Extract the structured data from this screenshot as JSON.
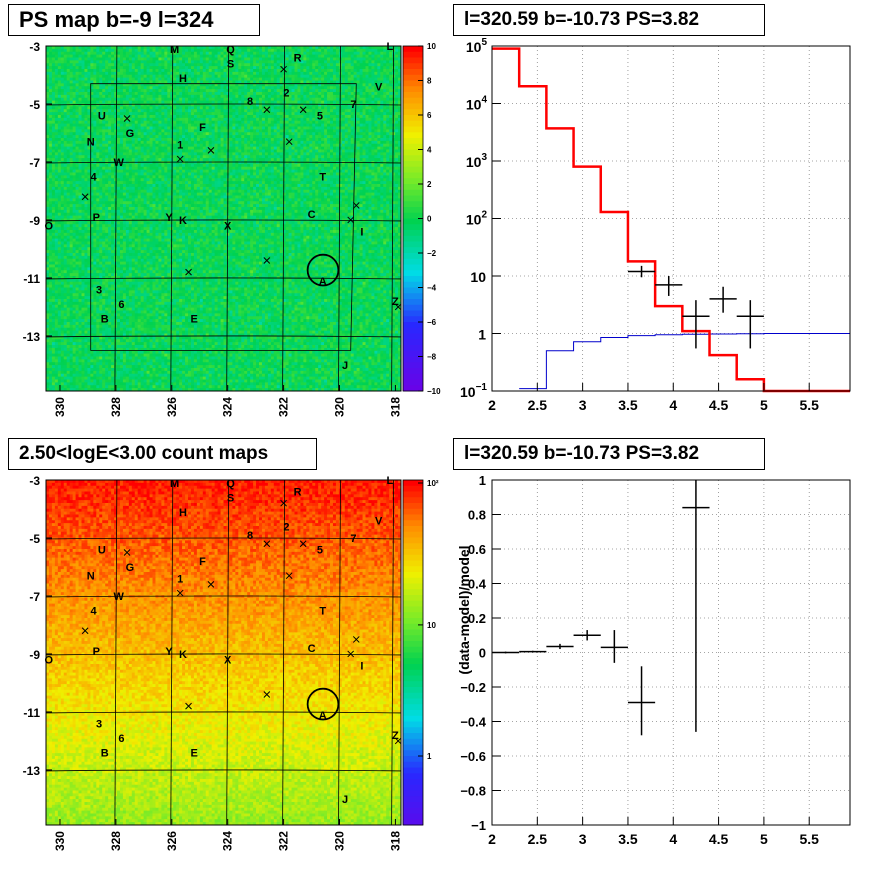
{
  "panel_titles": {
    "top_left": "PS map b=-9 l=324",
    "top_right": "l=320.59 b=-10.73 PS=3.82",
    "bottom_left": "2.50<logE<3.00 count maps",
    "bottom_right": "l=320.59 b=-10.73 PS=3.82"
  },
  "chart_data": [
    {
      "type": "heatmap",
      "name": "ps-map",
      "xlim": [
        330.5,
        317.8
      ],
      "ylim": [
        -14.9,
        -3
      ],
      "x_ticks": [
        "330",
        "328",
        "326",
        "324",
        "322",
        "320",
        "318"
      ],
      "y_ticks": [
        "-3",
        "-5",
        "-7",
        "-9",
        "-11",
        "-13"
      ],
      "colorbar": {
        "scale": "linear",
        "range": [
          -10,
          10
        ],
        "ticks": [
          "10",
          "8",
          "6",
          "4",
          "2",
          "0",
          "−2",
          "−4",
          "−6",
          "−8",
          "−10"
        ]
      },
      "source_labels": [
        {
          "t": "M",
          "l": 325.9,
          "b": -3.1
        },
        {
          "t": "Q",
          "l": 323.9,
          "b": -3.1
        },
        {
          "t": "S",
          "l": 323.9,
          "b": -3.6
        },
        {
          "t": "R",
          "l": 321.5,
          "b": -3.4
        },
        {
          "t": "L",
          "l": 318.2,
          "b": -3.0
        },
        {
          "t": "H",
          "l": 325.6,
          "b": -4.1
        },
        {
          "t": "V",
          "l": 318.6,
          "b": -4.4
        },
        {
          "t": "2",
          "l": 321.9,
          "b": -4.6
        },
        {
          "t": "8",
          "l": 323.2,
          "b": -4.9
        },
        {
          "t": "7",
          "l": 319.5,
          "b": -5.0
        },
        {
          "t": "U",
          "l": 328.5,
          "b": -5.4
        },
        {
          "t": "5",
          "l": 320.7,
          "b": -5.4
        },
        {
          "t": "F",
          "l": 324.9,
          "b": -5.8
        },
        {
          "t": "G",
          "l": 327.5,
          "b": -6.0
        },
        {
          "t": "N",
          "l": 328.9,
          "b": -6.3
        },
        {
          "t": "1",
          "l": 325.7,
          "b": -6.4
        },
        {
          "t": "W",
          "l": 327.9,
          "b": -7.0
        },
        {
          "t": "4",
          "l": 328.8,
          "b": -7.5
        },
        {
          "t": "T",
          "l": 320.6,
          "b": -7.5
        },
        {
          "t": "C",
          "l": 321.0,
          "b": -8.8
        },
        {
          "t": "P",
          "l": 328.7,
          "b": -8.9
        },
        {
          "t": "Y",
          "l": 326.1,
          "b": -8.9
        },
        {
          "t": "K",
          "l": 325.6,
          "b": -9.0
        },
        {
          "t": "O",
          "l": 330.4,
          "b": -9.2
        },
        {
          "t": "X",
          "l": 324.0,
          "b": -9.2
        },
        {
          "t": "I",
          "l": 319.2,
          "b": -9.4
        },
        {
          "t": "A",
          "l": 320.6,
          "b": -11.1
        },
        {
          "t": "3",
          "l": 328.6,
          "b": -11.4
        },
        {
          "t": "6",
          "l": 327.8,
          "b": -11.9
        },
        {
          "t": "Z",
          "l": 318.0,
          "b": -11.8
        },
        {
          "t": "B",
          "l": 328.4,
          "b": -12.4
        },
        {
          "t": "E",
          "l": 325.2,
          "b": -12.4
        },
        {
          "t": "J",
          "l": 319.8,
          "b": -14.0
        }
      ],
      "cross_markers": [
        {
          "l": 322.0,
          "b": -3.8
        },
        {
          "l": 322.6,
          "b": -5.2
        },
        {
          "l": 321.3,
          "b": -5.2
        },
        {
          "l": 327.6,
          "b": -5.5
        },
        {
          "l": 321.8,
          "b": -6.3
        },
        {
          "l": 324.6,
          "b": -6.6
        },
        {
          "l": 325.7,
          "b": -6.9
        },
        {
          "l": 329.1,
          "b": -8.2
        },
        {
          "l": 319.4,
          "b": -8.5
        },
        {
          "l": 319.6,
          "b": -9.0
        },
        {
          "l": 322.6,
          "b": -10.4
        },
        {
          "l": 325.4,
          "b": -10.8
        },
        {
          "l": 317.9,
          "b": -12.0
        }
      ],
      "circle": {
        "l": 320.59,
        "b": -10.73,
        "r_deg": 0.55
      }
    },
    {
      "type": "line",
      "name": "spectrum",
      "xlim": [
        2,
        5.95
      ],
      "ylim": [
        0.1,
        100000
      ],
      "yscale": "log",
      "grid": true,
      "x_ticks": [
        "2",
        "2.5",
        "3",
        "3.5",
        "4",
        "4.5",
        "5",
        "5.5"
      ],
      "y_ticks": [
        {
          "value": 100000,
          "base": "10",
          "exp": "5"
        },
        {
          "value": 10000,
          "base": "10",
          "exp": "4"
        },
        {
          "value": 1000,
          "base": "10",
          "exp": "3"
        },
        {
          "value": 100,
          "base": "10",
          "exp": "2"
        },
        {
          "value": 10,
          "base": "10",
          "exp": ""
        },
        {
          "value": 1,
          "base": "1",
          "exp": ""
        },
        {
          "value": 0.1,
          "base": "10",
          "exp": "−1"
        }
      ],
      "series": [
        {
          "role": "model",
          "color": "#ff0000",
          "width": 2.5,
          "edges": [
            2,
            2.3,
            2.6,
            2.9,
            3.2,
            3.5,
            3.8,
            4.1,
            4.4,
            4.7,
            5.0,
            5.95
          ],
          "values": [
            90000,
            20000,
            3700,
            800,
            130,
            18,
            3,
            1.1,
            0.42,
            0.16,
            0.1
          ]
        },
        {
          "role": "data",
          "color": "#000000",
          "width": 1.5,
          "edges": [
            2,
            2.3,
            2.6,
            2.9,
            3.2,
            3.5,
            3.8,
            4.1,
            4.4,
            4.7,
            5.0,
            5.95
          ],
          "values": [
            90000,
            20000,
            3700,
            800,
            130,
            18,
            3,
            1.1,
            0.42,
            0.16,
            0.1
          ]
        },
        {
          "role": "background",
          "color": "#0000cc",
          "width": 1,
          "edges": [
            2.3,
            2.6,
            2.9,
            3.2,
            3.5,
            3.8,
            4.1,
            4.4,
            4.7,
            5.0,
            5.95
          ],
          "values": [
            0.11,
            0.5,
            0.72,
            0.85,
            0.92,
            0.95,
            0.97,
            0.98,
            0.99,
            1.0
          ]
        }
      ],
      "points": [
        {
          "x": 3.65,
          "y": 12,
          "lo": 9.5,
          "hi": 15,
          "xerr": 0.15
        },
        {
          "x": 3.95,
          "y": 7,
          "lo": 4.5,
          "hi": 10,
          "xerr": 0.15
        },
        {
          "x": 4.25,
          "y": 2,
          "lo": 0.55,
          "hi": 3.8,
          "xerr": 0.15
        },
        {
          "x": 4.55,
          "y": 4,
          "lo": 2.3,
          "hi": 6.5,
          "xerr": 0.15
        },
        {
          "x": 4.85,
          "y": 2,
          "lo": 0.55,
          "hi": 3.8,
          "xerr": 0.15
        }
      ]
    },
    {
      "type": "heatmap",
      "name": "count-map",
      "xlim": [
        330.5,
        317.8
      ],
      "ylim": [
        -14.9,
        -3
      ],
      "x_ticks": [
        "330",
        "328",
        "326",
        "324",
        "322",
        "320",
        "318"
      ],
      "y_ticks": [
        "-3",
        "-5",
        "-7",
        "-9",
        "-11",
        "-13"
      ],
      "colorbar": {
        "scale": "log",
        "ticks": [
          "10²",
          "10",
          "1"
        ]
      }
    },
    {
      "type": "scatter",
      "name": "residuals",
      "xlim": [
        2,
        5.95
      ],
      "ylim": [
        -1,
        1
      ],
      "ylabel": "(data-model)/model",
      "grid": true,
      "x_ticks": [
        "2",
        "2.5",
        "3",
        "3.5",
        "4",
        "4.5",
        "5",
        "5.5"
      ],
      "y_ticks": [
        "1",
        "0.8",
        "0.6",
        "0.4",
        "0.2",
        "0",
        "−0.2",
        "−0.4",
        "−0.6",
        "−0.8",
        "−1"
      ],
      "points": [
        {
          "x": 2.15,
          "y": 0.0,
          "lo": -0.005,
          "hi": 0.005,
          "xerr": 0.15
        },
        {
          "x": 2.45,
          "y": 0.005,
          "lo": 0.0,
          "hi": 0.01,
          "xerr": 0.15
        },
        {
          "x": 2.75,
          "y": 0.035,
          "lo": 0.02,
          "hi": 0.05,
          "xerr": 0.15
        },
        {
          "x": 3.05,
          "y": 0.1,
          "lo": 0.07,
          "hi": 0.13,
          "xerr": 0.15
        },
        {
          "x": 3.35,
          "y": 0.03,
          "lo": -0.06,
          "hi": 0.13,
          "xerr": 0.15
        },
        {
          "x": 3.65,
          "y": -0.29,
          "lo": -0.48,
          "hi": -0.08,
          "xerr": 0.15
        },
        {
          "x": 4.25,
          "y": 0.84,
          "lo": -0.46,
          "hi": 1.0,
          "xerr": 0.15
        }
      ]
    }
  ]
}
